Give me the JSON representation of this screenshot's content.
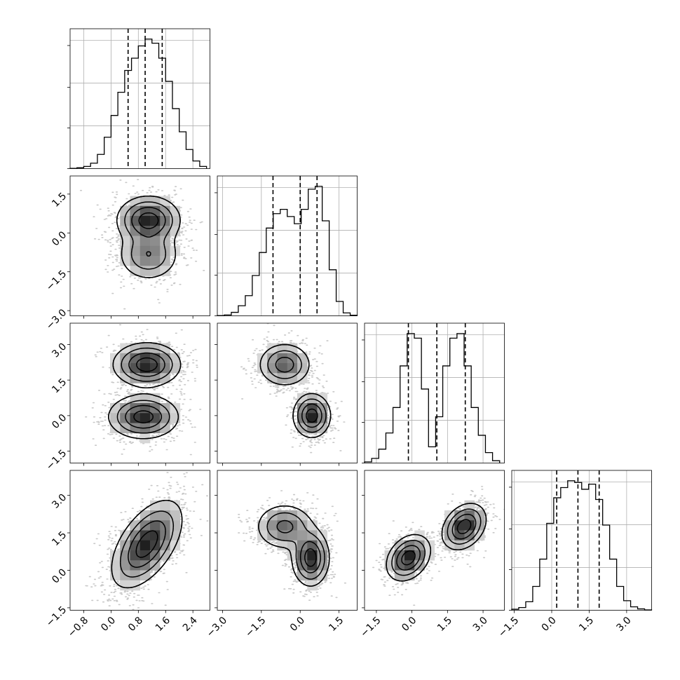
{
  "chart_data": {
    "type": "corner",
    "grid": true,
    "n_params": 4,
    "params": [
      {
        "range": [
          -1.2,
          2.9
        ],
        "ticks": [
          -0.8,
          0.0,
          0.8,
          1.6,
          2.4
        ],
        "tick_labels": [
          "−0.8",
          "0.0",
          "0.8",
          "1.6",
          "2.4"
        ]
      },
      {
        "range": [
          -3.2,
          2.2
        ],
        "ticks": [
          -3.0,
          -1.5,
          0.0,
          1.5
        ],
        "tick_labels": [
          "−3.0",
          "−1.5",
          "0.0",
          "1.5"
        ]
      },
      {
        "range": [
          -2.0,
          3.9
        ],
        "ticks": [
          -1.5,
          0.0,
          1.5,
          3.0
        ],
        "tick_labels": [
          "−1.5",
          "0.0",
          "1.5",
          "3.0"
        ]
      },
      {
        "range": [
          -1.6,
          4.0
        ],
        "ticks": [
          -1.5,
          0.0,
          1.5,
          3.0
        ],
        "tick_labels": [
          "−1.5",
          "0.0",
          "1.5",
          "3.0"
        ]
      }
    ],
    "histograms": [
      {
        "param": 0,
        "quantiles": [
          0.5,
          1.0,
          1.5
        ],
        "bin_edges": [
          -1.2,
          -1.0,
          -0.8,
          -0.6,
          -0.4,
          -0.2,
          0.0,
          0.2,
          0.4,
          0.6,
          0.8,
          1.0,
          1.2,
          1.4,
          1.6,
          1.8,
          2.0,
          2.2,
          2.4,
          2.6,
          2.8
        ],
        "counts": [
          1,
          3,
          8,
          20,
          52,
          115,
          195,
          280,
          360,
          405,
          450,
          475,
          460,
          405,
          320,
          220,
          135,
          70,
          28,
          8
        ]
      },
      {
        "param": 1,
        "quantiles": [
          -1.05,
          0.0,
          0.65
        ],
        "bin_edges": [
          -3.2,
          -2.93,
          -2.66,
          -2.39,
          -2.12,
          -1.85,
          -1.58,
          -1.31,
          -1.04,
          -0.77,
          -0.5,
          -0.23,
          0.04,
          0.31,
          0.58,
          0.85,
          1.12,
          1.39,
          1.66,
          1.93,
          2.2
        ],
        "counts": [
          1,
          3,
          12,
          35,
          70,
          140,
          220,
          305,
          355,
          370,
          345,
          320,
          370,
          440,
          450,
          330,
          160,
          50,
          10,
          2
        ]
      },
      {
        "param": 2,
        "quantiles": [
          -0.15,
          1.05,
          2.25
        ],
        "bin_edges": [
          -2.0,
          -1.7,
          -1.4,
          -1.1,
          -0.8,
          -0.5,
          -0.2,
          0.1,
          0.4,
          0.7,
          1.0,
          1.3,
          1.6,
          1.9,
          2.2,
          2.5,
          2.8,
          3.1,
          3.4,
          3.7
        ],
        "counts": [
          5,
          20,
          60,
          130,
          240,
          420,
          560,
          540,
          320,
          70,
          200,
          420,
          540,
          560,
          420,
          240,
          120,
          45,
          10
        ]
      },
      {
        "param": 3,
        "quantiles": [
          0.2,
          1.05,
          1.9
        ],
        "bin_edges": [
          -1.6,
          -1.32,
          -1.04,
          -0.76,
          -0.48,
          -0.2,
          0.08,
          0.36,
          0.64,
          0.92,
          1.2,
          1.48,
          1.76,
          2.04,
          2.32,
          2.6,
          2.88,
          3.16,
          3.44,
          3.72,
          4.0
        ],
        "counts": [
          3,
          8,
          25,
          70,
          150,
          255,
          330,
          360,
          380,
          375,
          355,
          370,
          325,
          250,
          150,
          70,
          28,
          10,
          4,
          1
        ]
      }
    ],
    "pairs": [
      {
        "x": 0,
        "y": 1,
        "modes": [
          {
            "weight": 0.62,
            "mean": [
              1.1,
              0.5
            ],
            "sd": [
              0.45,
              0.45
            ],
            "rho": 0.0
          },
          {
            "weight": 0.38,
            "mean": [
              1.1,
              -0.85
            ],
            "sd": [
              0.45,
              0.5
            ],
            "rho": 0.0
          }
        ]
      },
      {
        "x": 0,
        "y": 2,
        "modes": [
          {
            "weight": 0.5,
            "mean": [
              1.05,
              2.15
            ],
            "sd": [
              0.48,
              0.45
            ],
            "rho": 0.0
          },
          {
            "weight": 0.5,
            "mean": [
              0.95,
              -0.05
            ],
            "sd": [
              0.5,
              0.45
            ],
            "rho": 0.0
          }
        ]
      },
      {
        "x": 0,
        "y": 3,
        "modes": [
          {
            "weight": 1.0,
            "mean": [
              1.05,
              1.05
            ],
            "sd": [
              0.5,
              0.85
            ],
            "rho": 0.55
          }
        ]
      },
      {
        "x": 1,
        "y": 2,
        "modes": [
          {
            "weight": 0.5,
            "mean": [
              -0.6,
              2.15
            ],
            "sd": [
              0.5,
              0.45
            ],
            "rho": 0.0
          },
          {
            "weight": 0.5,
            "mean": [
              0.45,
              0.0
            ],
            "sd": [
              0.35,
              0.45
            ],
            "rho": 0.0
          }
        ]
      },
      {
        "x": 1,
        "y": 3,
        "modes": [
          {
            "weight": 0.45,
            "mean": [
              -0.6,
              1.75
            ],
            "sd": [
              0.55,
              0.45
            ],
            "rho": 0.0
          },
          {
            "weight": 0.55,
            "mean": [
              0.4,
              0.5
            ],
            "sd": [
              0.35,
              0.55
            ],
            "rho": 0.0
          }
        ]
      },
      {
        "x": 2,
        "y": 3,
        "modes": [
          {
            "weight": 0.5,
            "mean": [
              -0.15,
              0.5
            ],
            "sd": [
              0.45,
              0.45
            ],
            "rho": 0.3
          },
          {
            "weight": 0.5,
            "mean": [
              2.2,
              1.75
            ],
            "sd": [
              0.45,
              0.45
            ],
            "rho": 0.3
          }
        ]
      }
    ]
  }
}
